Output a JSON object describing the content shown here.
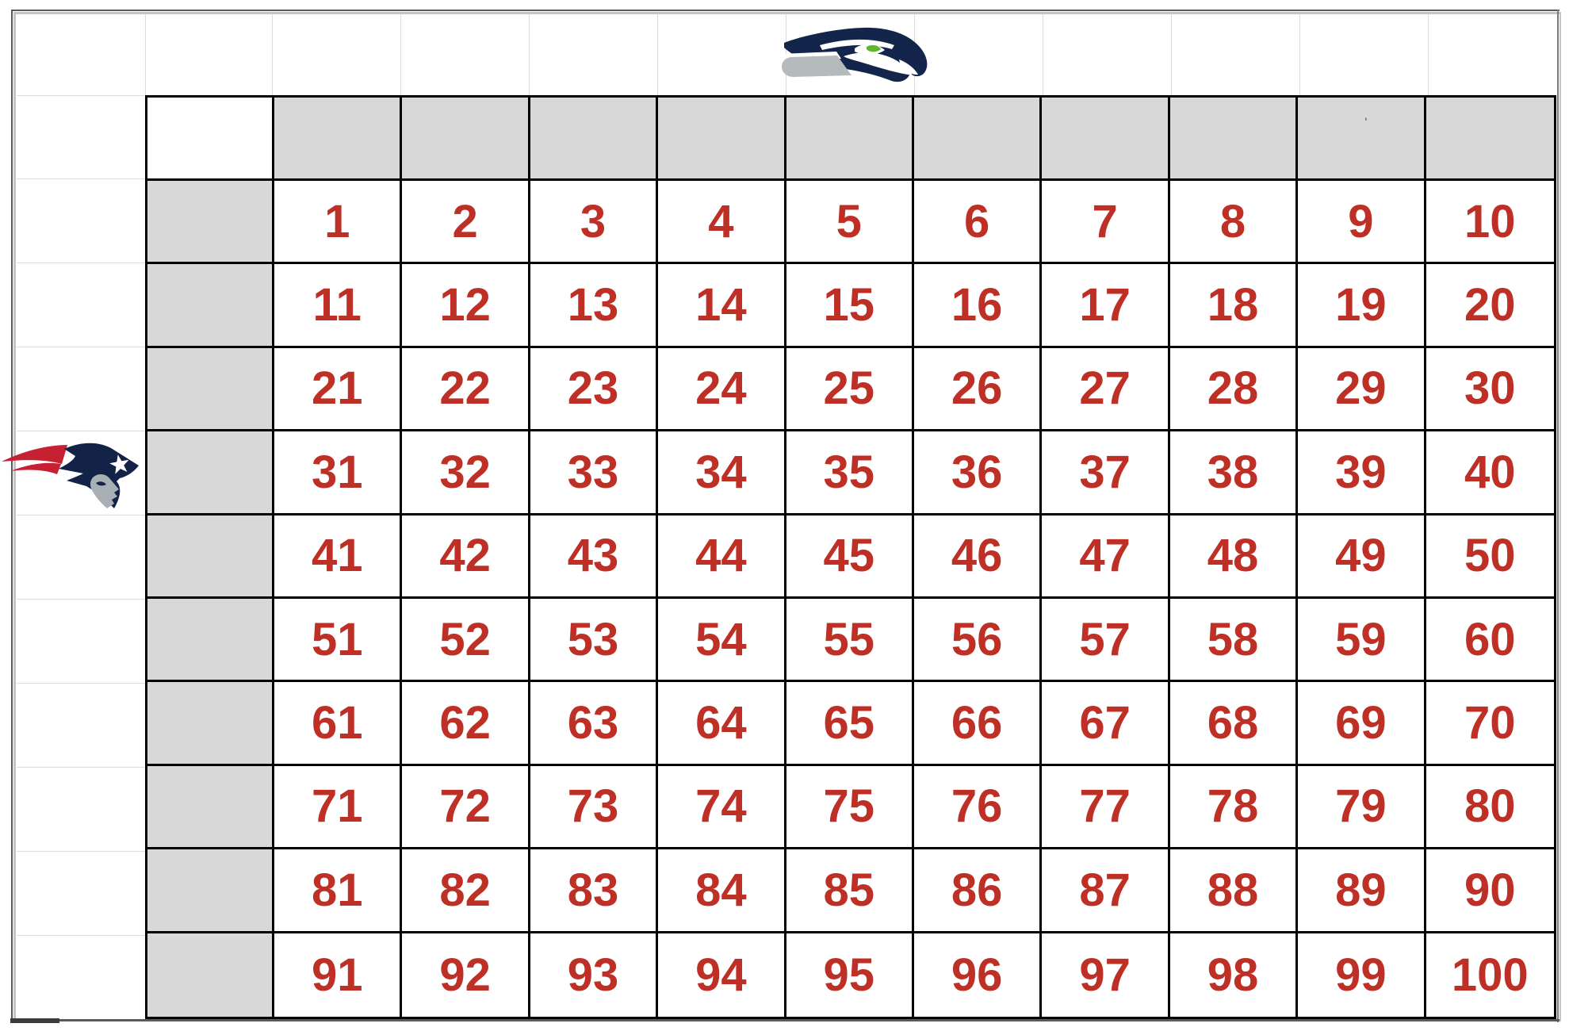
{
  "teams": {
    "top": {
      "name": "Seattle Seahawks",
      "logo_icon": "seahawks-logo"
    },
    "left": {
      "name": "New England Patriots",
      "logo_icon": "patriots-logo"
    }
  },
  "grid": {
    "corner": "",
    "column_headers": [
      "",
      "",
      "",
      "",
      "",
      "",
      "",
      "",
      "",
      ""
    ],
    "row_headers": [
      "",
      "",
      "",
      "",
      "",
      "",
      "",
      "",
      "",
      ""
    ],
    "rows": [
      [
        1,
        2,
        3,
        4,
        5,
        6,
        7,
        8,
        9,
        10
      ],
      [
        11,
        12,
        13,
        14,
        15,
        16,
        17,
        18,
        19,
        20
      ],
      [
        21,
        22,
        23,
        24,
        25,
        26,
        27,
        28,
        29,
        30
      ],
      [
        31,
        32,
        33,
        34,
        35,
        36,
        37,
        38,
        39,
        40
      ],
      [
        41,
        42,
        43,
        44,
        45,
        46,
        47,
        48,
        49,
        50
      ],
      [
        51,
        52,
        53,
        54,
        55,
        56,
        57,
        58,
        59,
        60
      ],
      [
        61,
        62,
        63,
        64,
        65,
        66,
        67,
        68,
        69,
        70
      ],
      [
        71,
        72,
        73,
        74,
        75,
        76,
        77,
        78,
        79,
        80
      ],
      [
        81,
        82,
        83,
        84,
        85,
        86,
        87,
        88,
        89,
        90
      ],
      [
        91,
        92,
        93,
        94,
        95,
        96,
        97,
        98,
        99,
        100
      ]
    ]
  },
  "artifact": {
    "stray_mark": "'"
  },
  "colors": {
    "number_red": "#be2f26",
    "header_fill": "#d8d8d8",
    "table_border": "#000000",
    "faint_gridline": "#dcdcdc",
    "seahawks_navy": "#13254a",
    "seahawks_green": "#5cb82f",
    "seahawks_silver": "#b5babd",
    "patriots_navy": "#122347",
    "patriots_red": "#c62033",
    "patriots_silver": "#a9b0b5"
  }
}
